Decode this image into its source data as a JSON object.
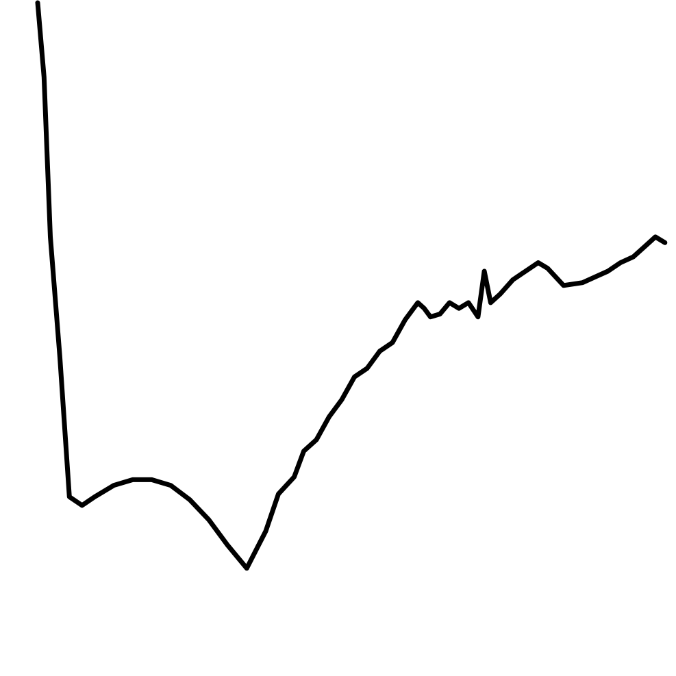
{
  "chart_data": {
    "type": "line",
    "title": "",
    "xlabel": "",
    "ylabel": "",
    "grid": false,
    "legend": "none",
    "xlim": [
      0,
      100
    ],
    "ylim": [
      0,
      100
    ],
    "series": [
      {
        "color": "#000000",
        "x": [
          0.0,
          1.0,
          2.0,
          3.5,
          5.0,
          7.0,
          9.0,
          12.0,
          15.0,
          18.0,
          21.0,
          24.0,
          27.0,
          30.0,
          33.0,
          36.0,
          38.0,
          40.5,
          42.0,
          44.0,
          46.0,
          48.0,
          50.0,
          52.0,
          54.0,
          56.0,
          58.0,
          60.0,
          61.0,
          62.0,
          63.5,
          65.0,
          66.5,
          68.0,
          69.5,
          70.5,
          71.5,
          73.0,
          75.0,
          77.0,
          79.0,
          80.5,
          83.0,
          86.0,
          88.0,
          90.0,
          92.0,
          94.0,
          96.0,
          97.5,
          99.0
        ],
        "y": [
          100.0,
          87.0,
          59.0,
          38.0,
          13.5,
          12.0,
          13.5,
          15.5,
          16.5,
          16.5,
          15.5,
          13.0,
          9.5,
          5.0,
          1.0,
          7.5,
          14.0,
          17.0,
          21.5,
          23.5,
          27.5,
          30.5,
          34.5,
          36.0,
          39.0,
          40.5,
          44.5,
          47.5,
          46.5,
          45.0,
          45.5,
          47.5,
          46.5,
          47.5,
          45.0,
          53.0,
          47.5,
          49.0,
          51.5,
          53.0,
          54.5,
          53.5,
          50.5,
          51.0,
          52.0,
          53.0,
          54.5,
          55.5,
          57.5,
          59.0,
          58.0
        ]
      }
    ]
  }
}
